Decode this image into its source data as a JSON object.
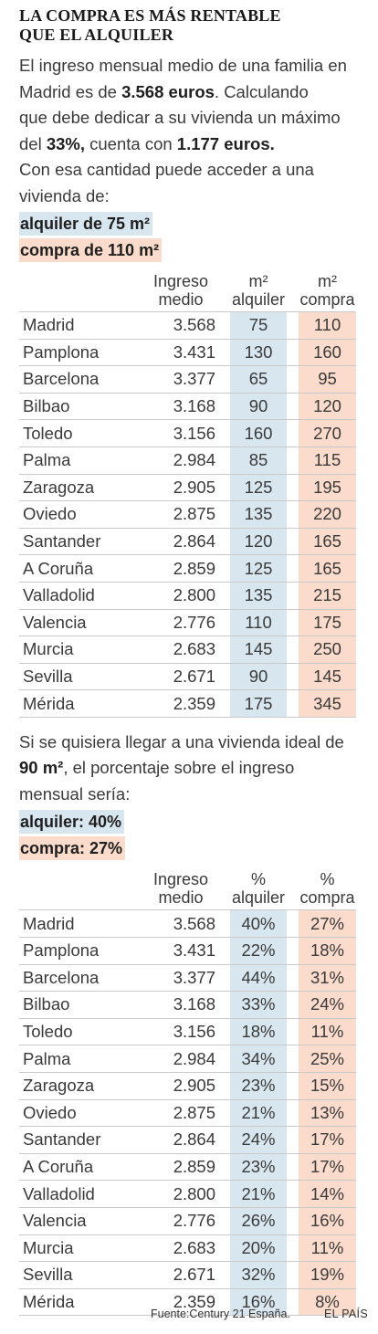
{
  "title": [
    "La compra es más rentable",
    "que el alquiler"
  ],
  "intro": {
    "l1": "El ingreso mensual medio de una familia en",
    "l2a": "Madrid es de ",
    "l2b": "3.568 euros",
    "l2c": ".  Calculando",
    "l3": "que debe dedicar a su vivienda un máximo",
    "l4a": "del ",
    "l4b": "33%,",
    "l4c": " cuenta con ",
    "l4d": "1.177 euros.",
    "l5": "Con esa cantidad puede acceder a una",
    "l6": "vivienda de:"
  },
  "tag_rent_1": "alquiler de 75 m²",
  "tag_buy_1": "compra de 110 m²",
  "table1": {
    "headers": {
      "income": [
        "Ingreso",
        "medio"
      ],
      "rent": [
        "m²",
        "alquiler"
      ],
      "buy": [
        "m²",
        "compra"
      ]
    },
    "rows": [
      [
        "Madrid",
        "3.568",
        "75",
        "110"
      ],
      [
        "Pamplona",
        "3.431",
        "130",
        "160"
      ],
      [
        "Barcelona",
        "3.377",
        "65",
        "95"
      ],
      [
        "Bilbao",
        "3.168",
        "90",
        "120"
      ],
      [
        "Toledo",
        "3.156",
        "160",
        "270"
      ],
      [
        "Palma",
        "2.984",
        "85",
        "115"
      ],
      [
        "Zaragoza",
        "2.905",
        "125",
        "195"
      ],
      [
        "Oviedo",
        "2.875",
        "135",
        "220"
      ],
      [
        "Santander",
        "2.864",
        "120",
        "165"
      ],
      [
        "A Coruña",
        "2.859",
        "125",
        "165"
      ],
      [
        "Valladolid",
        "2.800",
        "135",
        "215"
      ],
      [
        "Valencia",
        "2.776",
        "110",
        "175"
      ],
      [
        "Murcia",
        "2.683",
        "145",
        "250"
      ],
      [
        "Sevilla",
        "2.671",
        "90",
        "145"
      ],
      [
        "Mérida",
        "2.359",
        "175",
        "345"
      ]
    ]
  },
  "mid": {
    "l1": "Si se quisiera llegar a una vivienda ideal de",
    "l2a": "90 m²",
    "l2b": ", el porcentaje sobre el ingreso",
    "l3": "mensual sería:"
  },
  "tag_rent_2": "alquiler: 40%",
  "tag_buy_2": "compra: 27%",
  "table2": {
    "headers": {
      "income": [
        "Ingreso",
        "medio"
      ],
      "rent": [
        "%",
        "alquiler"
      ],
      "buy": [
        "%",
        "compra"
      ]
    },
    "rows": [
      [
        "Madrid",
        "3.568",
        "40%",
        "27%"
      ],
      [
        "Pamplona",
        "3.431",
        "22%",
        "18%"
      ],
      [
        "Barcelona",
        "3.377",
        "44%",
        "31%"
      ],
      [
        "Bilbao",
        "3.168",
        "33%",
        "24%"
      ],
      [
        "Toledo",
        "3.156",
        "18%",
        "11%"
      ],
      [
        "Palma",
        "2.984",
        "34%",
        "25%"
      ],
      [
        "Zaragoza",
        "2.905",
        "23%",
        "15%"
      ],
      [
        "Oviedo",
        "2.875",
        "21%",
        "13%"
      ],
      [
        "Santander",
        "2.864",
        "24%",
        "17%"
      ],
      [
        "A Coruña",
        "2.859",
        "23%",
        "17%"
      ],
      [
        "Valladolid",
        "2.800",
        "21%",
        "14%"
      ],
      [
        "Valencia",
        "2.776",
        "26%",
        "16%"
      ],
      [
        "Murcia",
        "2.683",
        "20%",
        "11%"
      ],
      [
        "Sevilla",
        "2.671",
        "32%",
        "19%"
      ],
      [
        "Mérida",
        "2.359",
        "16%",
        "8%"
      ]
    ]
  },
  "footer": {
    "source": "Fuente:Century 21 España.",
    "brand": "EL PAÍS"
  },
  "colors": {
    "rent_bg": "#d8e6ef",
    "buy_bg": "#fbdbcb"
  }
}
